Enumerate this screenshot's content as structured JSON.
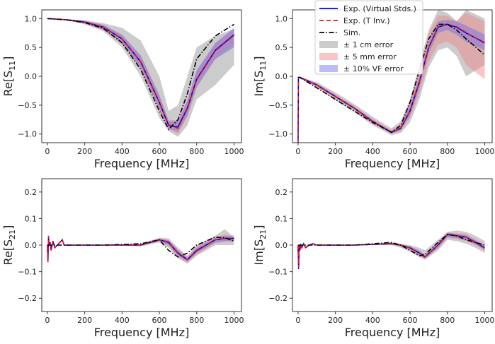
{
  "chart_data": [
    {
      "type": "line",
      "id": "re_s11",
      "ylabel": "Re[S11]",
      "ylabel_main": "Re[S",
      "ylabel_sub": "11",
      "ylabel_end": "]",
      "xlabel": "Frequency [MHz]",
      "xlim": [
        -30,
        1040
      ],
      "ylim": [
        -1.15,
        1.15
      ],
      "xticks": [
        0,
        200,
        400,
        600,
        800,
        1000
      ],
      "xtick_labels": [
        "0",
        "200",
        "400",
        "600",
        "800",
        "1000"
      ],
      "yticks": [
        1.0,
        0.5,
        0.0,
        -0.5,
        -1.0
      ],
      "ytick_labels": [
        "1.0",
        "0.5",
        "0.0",
        "−0.5",
        "−1.0"
      ],
      "x": [
        0,
        100,
        200,
        300,
        400,
        500,
        600,
        650,
        700,
        750,
        800,
        900,
        1000
      ],
      "exp_virtual": [
        1.0,
        0.98,
        0.94,
        0.85,
        0.65,
        0.25,
        -0.45,
        -0.85,
        -0.88,
        -0.55,
        -0.05,
        0.45,
        0.72
      ],
      "exp_tinv": [
        1.0,
        0.98,
        0.94,
        0.85,
        0.65,
        0.25,
        -0.45,
        -0.84,
        -0.9,
        -0.56,
        -0.06,
        0.44,
        0.71
      ],
      "sim": [
        1.0,
        0.98,
        0.93,
        0.83,
        0.58,
        0.12,
        -0.6,
        -0.92,
        -0.75,
        -0.3,
        0.3,
        0.7,
        0.9
      ],
      "band_1cm": {
        "lower": [
          1,
          0.97,
          0.9,
          0.78,
          0.5,
          0.0,
          -0.72,
          -0.95,
          -1.05,
          -0.85,
          -0.4,
          -0.15,
          0.2
        ],
        "upper": [
          1,
          0.99,
          0.97,
          0.92,
          0.84,
          0.62,
          0.0,
          -0.6,
          -0.5,
          0.0,
          0.5,
          0.7,
          0.82
        ]
      },
      "band_5mm": {
        "lower": [
          1,
          0.97,
          0.91,
          0.8,
          0.56,
          0.13,
          -0.58,
          -0.92,
          -1.0,
          -0.7,
          -0.2,
          0.3,
          0.55
        ],
        "upper": [
          1,
          0.99,
          0.96,
          0.89,
          0.72,
          0.36,
          -0.32,
          -0.76,
          -0.76,
          -0.4,
          0.1,
          0.57,
          0.82
        ]
      },
      "band_vf": {
        "lower": [
          1,
          0.97,
          0.92,
          0.81,
          0.58,
          0.15,
          -0.55,
          -0.9,
          -0.96,
          -0.68,
          -0.18,
          0.3,
          0.5
        ],
        "upper": [
          1,
          0.99,
          0.96,
          0.89,
          0.72,
          0.36,
          -0.33,
          -0.78,
          -0.78,
          -0.42,
          0.1,
          0.58,
          0.84
        ]
      }
    },
    {
      "type": "line",
      "id": "im_s11",
      "ylabel": "Im[S11]",
      "ylabel_main": "Im[S",
      "ylabel_sub": "11",
      "ylabel_end": "]",
      "xlabel": "Frequency [MHz]",
      "xlim": [
        -30,
        1040
      ],
      "ylim": [
        -1.15,
        1.15
      ],
      "xticks": [
        0,
        200,
        400,
        600,
        800,
        1000
      ],
      "xtick_labels": [
        "0",
        "200",
        "400",
        "600",
        "800",
        "1000"
      ],
      "yticks": [
        1.0,
        0.5,
        0.0,
        -0.5,
        -1.0
      ],
      "ytick_labels": [
        "1.0",
        "0.5",
        "0.0",
        "−0.5",
        "−1.0"
      ],
      "x": [
        0,
        2,
        10,
        100,
        200,
        300,
        400,
        500,
        550,
        600,
        650,
        700,
        750,
        800,
        850,
        900,
        1000
      ],
      "exp_virtual": [
        -1.15,
        -0.02,
        -0.02,
        -0.15,
        -0.35,
        -0.55,
        -0.78,
        -0.97,
        -0.9,
        -0.6,
        -0.1,
        0.5,
        0.85,
        0.9,
        0.85,
        0.75,
        0.58
      ],
      "exp_tinv": [
        -1.15,
        -0.02,
        -0.02,
        -0.15,
        -0.35,
        -0.55,
        -0.78,
        -0.97,
        -0.9,
        -0.6,
        -0.1,
        0.5,
        0.86,
        0.9,
        0.86,
        0.76,
        0.57
      ],
      "sim": [
        -0.02,
        -0.02,
        -0.02,
        -0.2,
        -0.4,
        -0.6,
        -0.8,
        -0.97,
        -0.85,
        -0.45,
        0.1,
        0.65,
        0.9,
        0.9,
        0.8,
        0.65,
        0.37
      ],
      "band_1cm": {
        "lower": [
          -0.02,
          -0.02,
          -0.03,
          -0.2,
          -0.42,
          -0.62,
          -0.85,
          -1.02,
          -0.98,
          -0.8,
          -0.4,
          0.15,
          0.45,
          0.5,
          0.35,
          0.0,
          0.2
        ],
        "upper": [
          -0.02,
          -0.02,
          -0.01,
          -0.1,
          -0.28,
          -0.48,
          -0.7,
          -0.9,
          -0.78,
          -0.4,
          0.2,
          0.8,
          1.15,
          1.1,
          0.95,
          1.15,
          1.0
        ]
      },
      "band_5mm": {
        "lower": [
          -0.02,
          -0.02,
          -0.03,
          -0.18,
          -0.38,
          -0.58,
          -0.82,
          -1.0,
          -0.95,
          -0.72,
          -0.3,
          0.25,
          0.55,
          0.6,
          0.5,
          0.2,
          -0.05
        ],
        "upper": [
          -0.02,
          -0.02,
          -0.01,
          -0.12,
          -0.31,
          -0.51,
          -0.74,
          -0.93,
          -0.82,
          -0.45,
          0.1,
          0.75,
          1.05,
          1.05,
          0.95,
          1.1,
          0.95
        ]
      },
      "band_vf": {
        "lower": [
          -0.02,
          -0.02,
          -0.03,
          -0.17,
          -0.37,
          -0.57,
          -0.8,
          -0.99,
          -0.93,
          -0.68,
          -0.2,
          0.4,
          0.75,
          0.8,
          0.72,
          0.6,
          0.45
        ],
        "upper": [
          -0.02,
          -0.02,
          -0.01,
          -0.13,
          -0.33,
          -0.53,
          -0.76,
          -0.95,
          -0.86,
          -0.5,
          0.0,
          0.6,
          0.95,
          0.98,
          0.95,
          0.88,
          0.72
        ]
      }
    },
    {
      "type": "line",
      "id": "re_s21",
      "ylabel": "Re[S21]",
      "ylabel_main": "Re[S",
      "ylabel_sub": "21",
      "ylabel_end": "]",
      "xlabel": "Frequency [MHz]",
      "xlim": [
        -30,
        1040
      ],
      "ylim": [
        -0.25,
        0.25
      ],
      "xticks": [
        0,
        200,
        400,
        600,
        800,
        1000
      ],
      "xtick_labels": [
        "0",
        "200",
        "400",
        "600",
        "800",
        "1000"
      ],
      "yticks": [
        0.2,
        0.1,
        0.0,
        -0.1,
        -0.2
      ],
      "ytick_labels": [
        "0.2",
        "0.1",
        "0.0",
        "−0.1",
        "−0.2"
      ],
      "x": [
        0,
        3,
        6,
        10,
        15,
        20,
        30,
        40,
        60,
        80,
        90,
        100,
        300,
        500,
        600,
        650,
        700,
        750,
        800,
        900,
        950,
        1000
      ],
      "exp_virtual": [
        0,
        -0.06,
        0.03,
        0,
        0.01,
        -0.02,
        0.015,
        -0.01,
        0.005,
        0.02,
        0,
        0,
        0,
        0,
        0.02,
        0.01,
        -0.03,
        -0.055,
        -0.02,
        0.02,
        0.025,
        0.025
      ],
      "exp_tinv": [
        0,
        -0.065,
        0.035,
        0,
        0.01,
        -0.02,
        0.015,
        -0.01,
        0.005,
        0.02,
        0,
        0,
        0,
        0,
        0.02,
        0.012,
        -0.032,
        -0.055,
        -0.022,
        0.02,
        0.025,
        0.022
      ],
      "sim": [
        0,
        0,
        0,
        0,
        0,
        0,
        0,
        0,
        0,
        0,
        0,
        0,
        0,
        0.005,
        0.02,
        -0.02,
        -0.045,
        -0.03,
        0,
        0.03,
        0.028,
        0.015
      ],
      "band_1cm": {
        "lower": [
          0,
          0,
          0,
          0,
          0,
          0,
          0,
          0,
          0,
          0,
          0,
          0,
          0,
          -0.005,
          0.01,
          -0.01,
          -0.05,
          -0.07,
          -0.04,
          0.0,
          0.0,
          0.0
        ],
        "upper": [
          0,
          0,
          0,
          0,
          0,
          0,
          0,
          0,
          0,
          0,
          0,
          0,
          0,
          0.005,
          0.028,
          0.025,
          -0.01,
          -0.04,
          0.0,
          0.035,
          0.06,
          0.03
        ]
      },
      "band_5mm": {
        "lower": [
          0,
          0,
          0,
          0,
          0,
          0,
          0,
          0,
          0,
          0,
          0,
          0,
          0,
          -0.003,
          0.013,
          -0.005,
          -0.045,
          -0.065,
          -0.035,
          0.008,
          0.012,
          0.012
        ],
        "upper": [
          0,
          0,
          0,
          0,
          0,
          0,
          0,
          0,
          0,
          0,
          0,
          0,
          0,
          0.003,
          0.025,
          0.02,
          -0.015,
          -0.045,
          -0.005,
          0.03,
          0.04,
          0.035
        ]
      },
      "band_vf": {
        "lower": [
          0,
          0,
          0,
          0,
          0,
          0,
          0,
          0,
          0,
          0,
          0,
          0,
          0,
          -0.002,
          0.015,
          0.0,
          -0.04,
          -0.062,
          -0.03,
          0.01,
          0.015,
          0.015
        ],
        "upper": [
          0,
          0,
          0,
          0,
          0,
          0,
          0,
          0,
          0,
          0,
          0,
          0,
          0,
          0.002,
          0.024,
          0.018,
          -0.02,
          -0.048,
          -0.01,
          0.028,
          0.035,
          0.032
        ]
      }
    },
    {
      "type": "line",
      "id": "im_s21",
      "ylabel": "Im[S21]",
      "ylabel_main": "Im[S",
      "ylabel_sub": "21",
      "ylabel_end": "]",
      "xlabel": "Frequency [MHz]",
      "xlim": [
        -30,
        1040
      ],
      "ylim": [
        -0.25,
        0.25
      ],
      "xticks": [
        0,
        200,
        400,
        600,
        800,
        1000
      ],
      "xtick_labels": [
        "0",
        "200",
        "400",
        "600",
        "800",
        "1000"
      ],
      "yticks": [
        0.2,
        0.1,
        0.0,
        -0.1,
        -0.2
      ],
      "ytick_labels": [
        "0.2",
        "0.1",
        "0.0",
        "−0.1",
        "−0.2"
      ],
      "x": [
        0,
        3,
        6,
        10,
        15,
        20,
        30,
        40,
        60,
        80,
        100,
        300,
        500,
        550,
        600,
        650,
        680,
        750,
        800,
        850,
        900,
        950,
        1000
      ],
      "exp_virtual": [
        0,
        -0.09,
        0.0,
        -0.02,
        0,
        -0.01,
        0.005,
        -0.01,
        0,
        0.005,
        0,
        0,
        0.005,
        0.0,
        -0.01,
        -0.03,
        -0.045,
        0.0,
        0.04,
        0.035,
        0.03,
        0.01,
        -0.01
      ],
      "exp_tinv": [
        0,
        -0.085,
        0.0,
        -0.02,
        0,
        -0.01,
        0.005,
        -0.01,
        0,
        0.005,
        0,
        0,
        0.005,
        0.0,
        -0.01,
        -0.032,
        -0.045,
        0.0,
        0.04,
        0.036,
        0.03,
        0.012,
        -0.012
      ],
      "sim": [
        0,
        0,
        0,
        0,
        0,
        0,
        0,
        0,
        0,
        0,
        0,
        0,
        0.01,
        0.0,
        -0.02,
        -0.04,
        -0.035,
        0.01,
        0.04,
        0.035,
        0.02,
        0.01,
        0.0
      ],
      "band_1cm": {
        "lower": [
          0,
          0,
          0,
          0,
          0,
          0,
          0,
          0,
          0,
          0,
          0,
          0,
          0.0,
          -0.01,
          -0.025,
          -0.045,
          -0.055,
          -0.02,
          0.02,
          0.015,
          0.005,
          -0.01,
          -0.03
        ],
        "upper": [
          0,
          0,
          0,
          0,
          0,
          0,
          0,
          0,
          0,
          0,
          0,
          0,
          0.01,
          0.005,
          0.0,
          -0.01,
          -0.02,
          0.02,
          0.05,
          0.055,
          0.05,
          0.035,
          0.015
        ]
      },
      "band_5mm": {
        "lower": [
          0,
          0,
          0,
          0,
          0,
          0,
          0,
          0,
          0,
          0,
          0,
          0,
          0.002,
          -0.006,
          -0.02,
          -0.04,
          -0.052,
          -0.012,
          0.028,
          0.022,
          0.015,
          0.0,
          -0.02
        ],
        "upper": [
          0,
          0,
          0,
          0,
          0,
          0,
          0,
          0,
          0,
          0,
          0,
          0,
          0.008,
          0.003,
          -0.003,
          -0.02,
          -0.035,
          0.012,
          0.048,
          0.045,
          0.042,
          0.022,
          0.0
        ]
      },
      "band_vf": {
        "lower": [
          0,
          0,
          0,
          0,
          0,
          0,
          0,
          0,
          0,
          0,
          0,
          0,
          0.003,
          -0.004,
          -0.017,
          -0.038,
          -0.05,
          -0.01,
          0.03,
          0.026,
          0.02,
          0.003,
          -0.018
        ],
        "upper": [
          0,
          0,
          0,
          0,
          0,
          0,
          0,
          0,
          0,
          0,
          0,
          0,
          0.007,
          0.002,
          -0.005,
          -0.022,
          -0.038,
          0.008,
          0.046,
          0.042,
          0.038,
          0.018,
          -0.002
        ]
      }
    }
  ],
  "legend": {
    "placement": "top-right of Im[S11] panel",
    "entries": [
      {
        "key": "exp_virtual",
        "label": "Exp. (Virtual Stds.)",
        "kind": "line",
        "color": "#0000dd",
        "dash": ""
      },
      {
        "key": "exp_tinv",
        "label": "Exp. (T Inv.)",
        "kind": "line",
        "color": "#ee1111",
        "dash": "6,4"
      },
      {
        "key": "sim",
        "label": "Sim.",
        "kind": "line",
        "color": "#000000",
        "dash": "7,2.5,1.5,2.5"
      },
      {
        "key": "band_1cm",
        "label": "± 1 cm error",
        "kind": "band",
        "color": "#9a9a9a",
        "opacity": 0.5
      },
      {
        "key": "band_5mm",
        "label": "± 5 mm error",
        "kind": "band",
        "color": "#f08080",
        "opacity": 0.45
      },
      {
        "key": "band_vf",
        "label": "± 10% VF error",
        "kind": "band",
        "color": "#6a6aee",
        "opacity": 0.45
      }
    ]
  }
}
